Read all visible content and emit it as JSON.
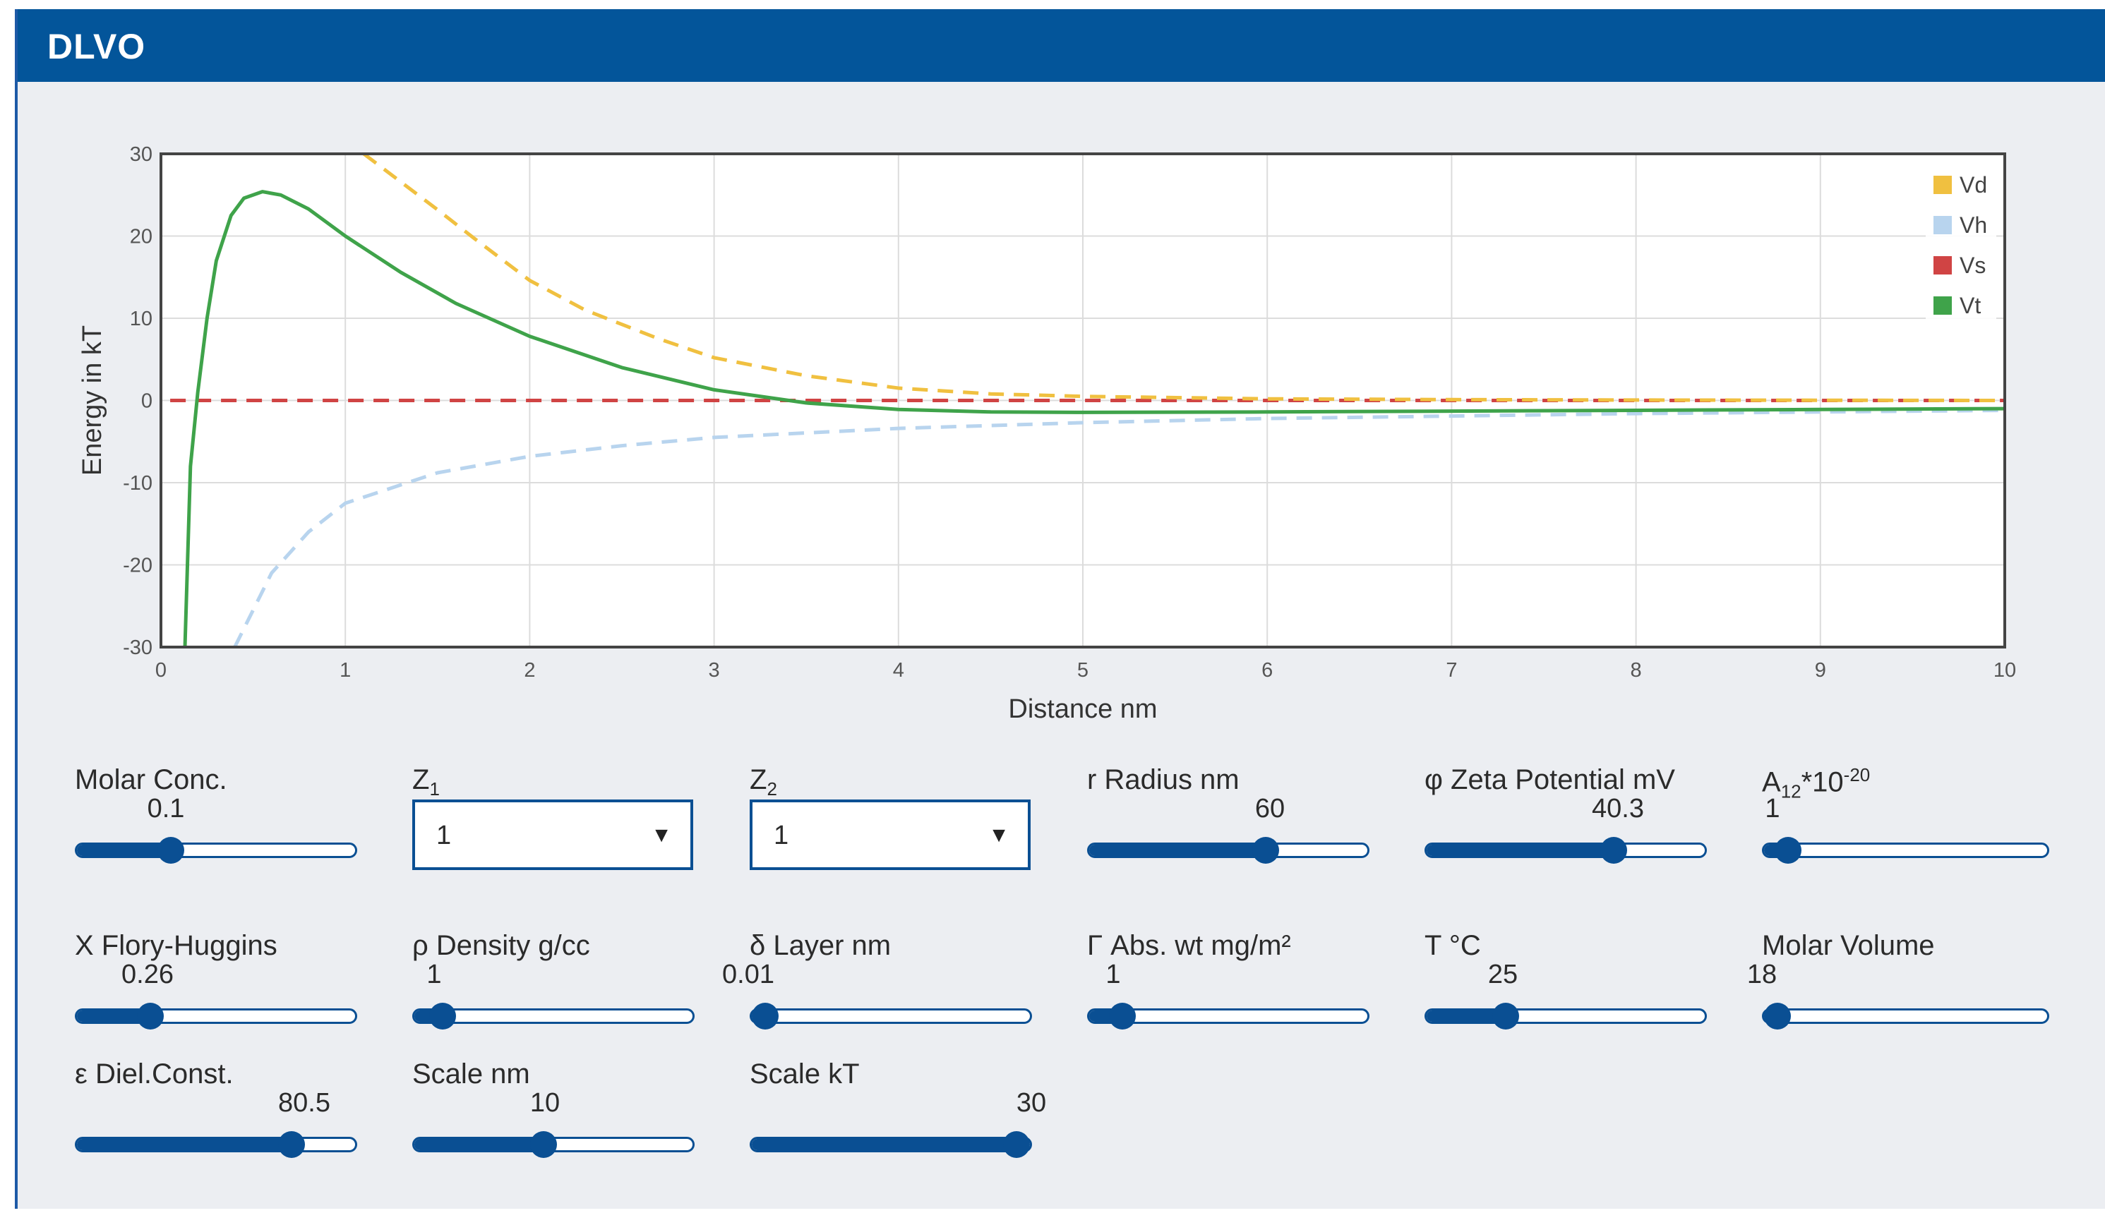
{
  "app": {
    "title": "DLVO",
    "colors": {
      "header": "#03559a",
      "accent": "#0a4f93",
      "panel": "#eceef2"
    }
  },
  "chart_data": {
    "type": "line",
    "xlabel": "Distance nm",
    "ylabel": "Energy in kT",
    "xlim": [
      0,
      10
    ],
    "ylim": [
      -30,
      30
    ],
    "xticks": [
      "0",
      "1",
      "2",
      "3",
      "4",
      "5",
      "6",
      "7",
      "8",
      "9",
      "10"
    ],
    "yticks": [
      "30",
      "20",
      "10",
      "0",
      "-10",
      "-20",
      "-30"
    ],
    "grid": true,
    "legend_position": "top-right",
    "series": [
      {
        "name": "Vd",
        "color": "#f0c040",
        "style": "dashed",
        "points": [
          [
            1.1,
            30
          ],
          [
            1.3,
            26.6
          ],
          [
            1.5,
            23.2
          ],
          [
            1.7,
            19.7
          ],
          [
            2.0,
            14.6
          ],
          [
            2.3,
            11.0
          ],
          [
            2.7,
            7.5
          ],
          [
            3.0,
            5.2
          ],
          [
            3.5,
            3.0
          ],
          [
            4.0,
            1.5
          ],
          [
            4.5,
            0.8
          ],
          [
            5.0,
            0.5
          ],
          [
            6.0,
            0.2
          ],
          [
            7.0,
            0.1
          ],
          [
            8.0,
            0.05
          ],
          [
            10.0,
            0.0
          ]
        ]
      },
      {
        "name": "Vh",
        "color": "#b8d4ee",
        "style": "dashed",
        "points": [
          [
            0.4,
            -30
          ],
          [
            0.6,
            -21
          ],
          [
            0.8,
            -16
          ],
          [
            1.0,
            -12.5
          ],
          [
            1.5,
            -8.8
          ],
          [
            2.0,
            -6.8
          ],
          [
            2.5,
            -5.5
          ],
          [
            3.0,
            -4.5
          ],
          [
            4.0,
            -3.4
          ],
          [
            5.0,
            -2.7
          ],
          [
            6.0,
            -2.2
          ],
          [
            7.0,
            -1.9
          ],
          [
            8.0,
            -1.6
          ],
          [
            9.0,
            -1.4
          ],
          [
            10.0,
            -1.2
          ]
        ]
      },
      {
        "name": "Vs",
        "color": "#d04444",
        "style": "dashed",
        "points": [
          [
            0.05,
            0
          ],
          [
            10.0,
            0
          ]
        ]
      },
      {
        "name": "Vt",
        "color": "#3fa34a",
        "style": "solid",
        "points": [
          [
            0.13,
            -30
          ],
          [
            0.16,
            -8
          ],
          [
            0.2,
            1
          ],
          [
            0.25,
            10
          ],
          [
            0.3,
            17
          ],
          [
            0.38,
            22.5
          ],
          [
            0.45,
            24.6
          ],
          [
            0.55,
            25.4
          ],
          [
            0.65,
            25.0
          ],
          [
            0.8,
            23.3
          ],
          [
            1.0,
            20.0
          ],
          [
            1.3,
            15.6
          ],
          [
            1.6,
            11.8
          ],
          [
            2.0,
            7.8
          ],
          [
            2.5,
            4.0
          ],
          [
            3.0,
            1.3
          ],
          [
            3.5,
            -0.3
          ],
          [
            4.0,
            -1.1
          ],
          [
            4.5,
            -1.4
          ],
          [
            5.0,
            -1.45
          ],
          [
            6.0,
            -1.4
          ],
          [
            7.0,
            -1.3
          ],
          [
            8.0,
            -1.2
          ],
          [
            9.0,
            -1.1
          ],
          [
            10.0,
            -1.0
          ]
        ]
      }
    ]
  },
  "controls": {
    "molar_conc": {
      "label": "Molar Conc.",
      "value": "0.1",
      "level": 0.32
    },
    "z1": {
      "label": "Z",
      "sub": "1",
      "value": "1"
    },
    "z2": {
      "label": "Z",
      "sub": "2",
      "value": "1"
    },
    "radius": {
      "label": "r Radius nm",
      "value": "60",
      "level": 0.65
    },
    "zeta": {
      "label": "φ Zeta Potential mV",
      "value": "40.3",
      "level": 0.69
    },
    "a12": {
      "label": "A",
      "sub": "12",
      "suffix": "*10",
      "sup": "-20",
      "value": "1",
      "level": 0.04
    },
    "flory": {
      "label": "X Flory-Huggins",
      "value": "0.26",
      "level": 0.24
    },
    "density": {
      "label": "ρ Density g/cc",
      "value": "1",
      "level": 0.06
    },
    "layer": {
      "label": "δ Layer nm",
      "value": "0.01",
      "level": 0.0
    },
    "abs_wt": {
      "label": "Γ Abs. wt mg/m²",
      "value": "1",
      "level": 0.08
    },
    "temp": {
      "label": "T °C",
      "value": "25",
      "level": 0.26
    },
    "molar_volume": {
      "label": "Molar Volume",
      "value": "18",
      "level": 0.0
    },
    "diel_const": {
      "label": "ε Diel.Const.",
      "value": "80.5",
      "level": 0.8
    },
    "scale_nm": {
      "label": "Scale nm",
      "value": "10",
      "level": 0.46
    },
    "scale_kt": {
      "label": "Scale kT",
      "value": "30",
      "level": 1.0
    }
  }
}
